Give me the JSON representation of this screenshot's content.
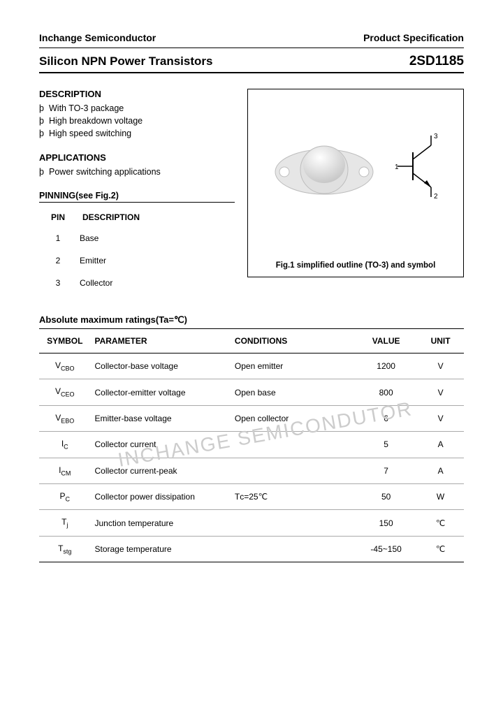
{
  "header": {
    "left": "Inchange Semiconductor",
    "right": "Product Specification"
  },
  "title": {
    "left": "Silicon NPN Power Transistors",
    "right": "2SD1185"
  },
  "description": {
    "heading": "DESCRIPTION",
    "items": [
      "With TO-3 package",
      "High breakdown voltage",
      "High speed switching"
    ]
  },
  "applications": {
    "heading": "APPLICATIONS",
    "items": [
      "Power switching applications"
    ]
  },
  "pinning": {
    "heading": "PINNING(see Fig.2)",
    "columns": [
      "PIN",
      "DESCRIPTION"
    ],
    "rows": [
      {
        "pin": "1",
        "desc": "Base"
      },
      {
        "pin": "2",
        "desc": "Emitter"
      },
      {
        "pin": "3",
        "desc": "Collector"
      }
    ]
  },
  "figure": {
    "caption": "Fig.1 simplified outline (TO-3) and symbol",
    "pin_labels": [
      "1",
      "2",
      "3"
    ]
  },
  "ratings": {
    "heading": "Absolute maximum ratings(Ta=℃)",
    "columns": [
      "SYMBOL",
      "PARAMETER",
      "CONDITIONS",
      "VALUE",
      "UNIT"
    ],
    "rows": [
      {
        "symbol": "V",
        "sub": "CBO",
        "parameter": "Collector-base voltage",
        "conditions": "Open emitter",
        "value": "1200",
        "unit": "V"
      },
      {
        "symbol": "V",
        "sub": "CEO",
        "parameter": "Collector-emitter voltage",
        "conditions": "Open base",
        "value": "800",
        "unit": "V"
      },
      {
        "symbol": "V",
        "sub": "EBO",
        "parameter": "Emitter-base voltage",
        "conditions": "Open collector",
        "value": "6",
        "unit": "V"
      },
      {
        "symbol": "I",
        "sub": "C",
        "parameter": "Collector current",
        "conditions": "",
        "value": "5",
        "unit": "A"
      },
      {
        "symbol": "I",
        "sub": "CM",
        "parameter": "Collector current-peak",
        "conditions": "",
        "value": "7",
        "unit": "A"
      },
      {
        "symbol": "P",
        "sub": "C",
        "parameter": "Collector power dissipation",
        "conditions": "Tᴄ=25℃",
        "value": "50",
        "unit": "W"
      },
      {
        "symbol": "T",
        "sub": "j",
        "parameter": "Junction temperature",
        "conditions": "",
        "value": "150",
        "unit": "℃"
      },
      {
        "symbol": "T",
        "sub": "stg",
        "parameter": "Storage temperature",
        "conditions": "",
        "value": "-45~150",
        "unit": "℃"
      }
    ]
  },
  "watermark": "INCHANGE SEMICONDUTOR",
  "colors": {
    "text": "#000000",
    "background": "#ffffff",
    "row_border": "#aaaaaa",
    "watermark": "#cccccc",
    "package_fill": "#d8d8d8",
    "package_stroke": "#bfbfbf"
  }
}
